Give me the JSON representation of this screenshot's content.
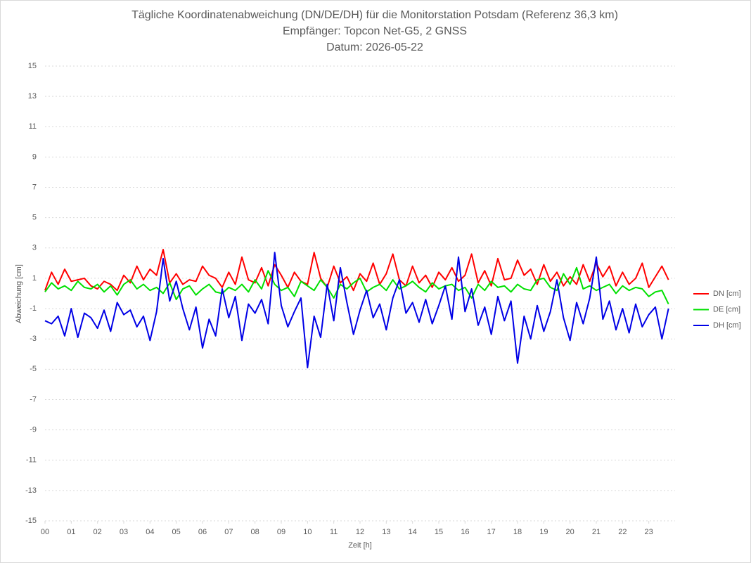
{
  "chart_data": {
    "type": "line",
    "title": "Tägliche Koordinatenabweichung (DN/DE/DH) für die Monitorstation Potsdam (Referenz 36,3 km)",
    "subtitle": "Empfänger: Topcon Net-G5, 2 GNSS",
    "date_line": "Datum: 2026-05-22",
    "x_label": "Zeit [h]",
    "y_label": "Abweichung [cm]",
    "xlim": [
      0,
      24
    ],
    "xticks": [
      {
        "value": 0,
        "label": "00"
      },
      {
        "value": 1,
        "label": "01"
      },
      {
        "value": 2,
        "label": "02"
      },
      {
        "value": 3,
        "label": "03"
      },
      {
        "value": 4,
        "label": "04"
      },
      {
        "value": 5,
        "label": "05"
      },
      {
        "value": 6,
        "label": "06"
      },
      {
        "value": 7,
        "label": "07"
      },
      {
        "value": 8,
        "label": "08"
      },
      {
        "value": 9,
        "label": "09"
      },
      10,
      11,
      12,
      13,
      14,
      15,
      16,
      17,
      18,
      19,
      20,
      21,
      22,
      23
    ],
    "ylim": [
      -15,
      15
    ],
    "yticks": [
      -15,
      -13,
      -11,
      -9,
      -7,
      -5,
      -3,
      -1,
      1,
      3,
      5,
      7,
      9,
      11,
      13,
      15
    ],
    "grid": true,
    "legend": "right",
    "x": [
      0,
      0.25,
      0.5,
      0.75,
      1,
      1.25,
      1.5,
      1.75,
      2,
      2.25,
      2.5,
      2.75,
      3,
      3.25,
      3.5,
      3.75,
      4,
      4.25,
      4.5,
      4.75,
      5,
      5.25,
      5.5,
      5.75,
      6,
      6.25,
      6.5,
      6.75,
      7,
      7.25,
      7.5,
      7.75,
      8,
      8.25,
      8.5,
      8.75,
      9,
      9.25,
      9.5,
      9.75,
      10,
      10.25,
      10.5,
      10.75,
      11,
      11.25,
      11.5,
      11.75,
      12,
      12.25,
      12.5,
      12.75,
      13,
      13.25,
      13.5,
      13.75,
      14,
      14.25,
      14.5,
      14.75,
      15,
      15.25,
      15.5,
      15.75,
      16,
      16.25,
      16.5,
      16.75,
      17,
      17.25,
      17.5,
      17.75,
      18,
      18.25,
      18.5,
      18.75,
      19,
      19.25,
      19.5,
      19.75,
      20,
      20.25,
      20.5,
      20.75,
      21,
      21.25,
      21.5,
      21.75,
      22,
      22.25,
      22.5,
      22.75,
      23,
      23.25,
      23.5,
      23.75
    ],
    "series": [
      {
        "name": "DN [cm]",
        "color": "#ff0000",
        "values": [
          0.2,
          1.4,
          0.6,
          1.6,
          0.8,
          0.9,
          1.0,
          0.5,
          0.3,
          0.8,
          0.6,
          0.2,
          1.2,
          0.7,
          1.8,
          0.9,
          1.6,
          1.2,
          2.9,
          0.7,
          1.3,
          0.6,
          0.9,
          0.8,
          1.8,
          1.2,
          1.0,
          0.4,
          1.4,
          0.6,
          2.4,
          0.9,
          0.7,
          1.7,
          0.5,
          1.9,
          1.2,
          0.4,
          1.4,
          0.8,
          0.6,
          2.7,
          1.0,
          0.4,
          1.8,
          0.7,
          1.1,
          0.2,
          1.3,
          0.8,
          2.0,
          0.6,
          1.3,
          2.6,
          0.9,
          0.5,
          1.8,
          0.7,
          1.2,
          0.4,
          1.4,
          0.9,
          1.7,
          0.8,
          1.2,
          2.6,
          0.7,
          1.5,
          0.5,
          2.3,
          0.9,
          1.0,
          2.2,
          1.2,
          1.6,
          0.6,
          1.9,
          0.8,
          1.4,
          0.5,
          1.1,
          0.6,
          1.9,
          0.8,
          2.0,
          1.1,
          1.8,
          0.5,
          1.4,
          0.6,
          1.0,
          2.0,
          0.4,
          1.1,
          1.8,
          0.9
        ]
      },
      {
        "name": "DE [cm]",
        "color": "#00e000",
        "values": [
          0.1,
          0.7,
          0.3,
          0.5,
          0.2,
          0.8,
          0.4,
          0.3,
          0.6,
          0.1,
          0.5,
          -0.1,
          0.6,
          0.9,
          0.3,
          0.6,
          0.2,
          0.4,
          0.0,
          0.7,
          -0.4,
          0.3,
          0.5,
          -0.1,
          0.3,
          0.6,
          0.1,
          0.0,
          0.4,
          0.2,
          0.6,
          0.1,
          0.9,
          0.3,
          1.5,
          0.6,
          0.2,
          0.4,
          -0.2,
          0.8,
          0.5,
          0.2,
          0.9,
          0.4,
          -0.3,
          0.6,
          0.3,
          0.7,
          1.0,
          0.1,
          0.4,
          0.6,
          0.2,
          0.9,
          0.3,
          0.5,
          0.8,
          0.4,
          0.1,
          0.7,
          0.3,
          0.5,
          0.6,
          0.2,
          0.4,
          -0.3,
          0.6,
          0.2,
          0.8,
          0.4,
          0.5,
          0.1,
          0.6,
          0.3,
          0.2,
          0.9,
          1.0,
          0.4,
          0.2,
          1.3,
          0.6,
          1.7,
          0.3,
          0.5,
          0.2,
          0.4,
          0.6,
          0.0,
          0.5,
          0.2,
          0.4,
          0.3,
          -0.2,
          0.1,
          0.2,
          -0.7
        ]
      },
      {
        "name": "DH [cm]",
        "color": "#0000e6",
        "values": [
          -1.8,
          -2.0,
          -1.5,
          -2.8,
          -1.0,
          -2.9,
          -1.3,
          -1.6,
          -2.3,
          -1.1,
          -2.5,
          -0.6,
          -1.4,
          -1.1,
          -2.2,
          -1.5,
          -3.1,
          -1.2,
          2.3,
          -0.5,
          0.8,
          -1.0,
          -2.4,
          -0.9,
          -3.6,
          -1.7,
          -2.8,
          0.3,
          -1.6,
          -0.2,
          -3.1,
          -0.7,
          -1.3,
          -0.4,
          -2.0,
          2.7,
          -0.8,
          -2.2,
          -1.2,
          -0.3,
          -4.9,
          -1.5,
          -2.9,
          0.6,
          -1.8,
          1.7,
          -0.6,
          -2.7,
          -1.1,
          0.2,
          -1.6,
          -0.7,
          -2.4,
          -0.3,
          0.9,
          -1.3,
          -0.6,
          -1.9,
          -0.4,
          -2.0,
          -0.8,
          0.5,
          -1.7,
          2.4,
          -1.2,
          0.3,
          -2.1,
          -0.9,
          -2.7,
          -0.2,
          -1.8,
          -0.5,
          -4.6,
          -1.5,
          -3.0,
          -0.8,
          -2.5,
          -1.2,
          0.9,
          -1.6,
          -3.1,
          -0.6,
          -2.0,
          -0.3,
          2.4,
          -1.7,
          -0.5,
          -2.4,
          -1.0,
          -2.6,
          -0.7,
          -2.2,
          -1.4,
          -0.9,
          -3.0,
          -1.0
        ]
      }
    ]
  }
}
